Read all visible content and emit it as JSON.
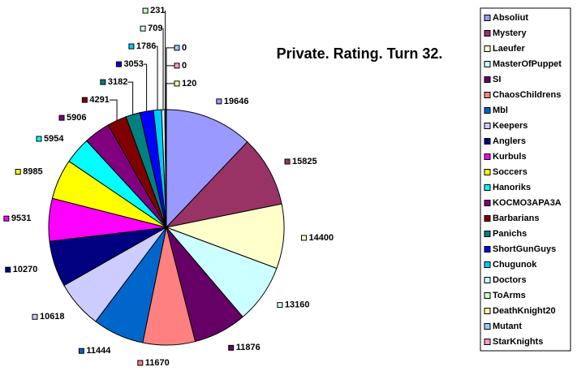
{
  "chart_data": {
    "type": "pie",
    "title": "Private. Rating. Turn 32.",
    "series": [
      {
        "name": "Absoliut",
        "color": "#9999FF",
        "values": [
          19646
        ]
      },
      {
        "name": "Mystery",
        "color": "#993366",
        "values": [
          15825
        ]
      },
      {
        "name": "Laeufer",
        "color": "#FFFFCC",
        "values": [
          14400
        ]
      },
      {
        "name": "MasterOfPuppet",
        "color": "#CCFFFF",
        "values": [
          13160
        ]
      },
      {
        "name": "SI",
        "color": "#660066",
        "values": [
          11876
        ]
      },
      {
        "name": "ChaosChildrens",
        "color": "#FF8080",
        "values": [
          11670
        ]
      },
      {
        "name": "Mbl",
        "color": "#0066CC",
        "values": [
          11444
        ]
      },
      {
        "name": "Keepers",
        "color": "#CCCCFF",
        "values": [
          10618
        ]
      },
      {
        "name": "Anglers",
        "color": "#000080",
        "values": [
          10270
        ]
      },
      {
        "name": "Kurbuls",
        "color": "#FF00FF",
        "values": [
          9531
        ]
      },
      {
        "name": "Soccers",
        "color": "#FFFF00",
        "values": [
          8985
        ]
      },
      {
        "name": "Hanoriks",
        "color": "#00FFFF",
        "values": [
          5954
        ]
      },
      {
        "name": "KOCMO3APA3A",
        "color": "#800080",
        "values": [
          5906
        ]
      },
      {
        "name": "Barbarians",
        "color": "#800000",
        "values": [
          4291
        ]
      },
      {
        "name": "Panichs",
        "color": "#008080",
        "values": [
          3182
        ]
      },
      {
        "name": "ShortGunGuys",
        "color": "#0000FF",
        "values": [
          3053
        ]
      },
      {
        "name": "Chugunok",
        "color": "#00CCFF",
        "values": [
          1786
        ]
      },
      {
        "name": "Doctors",
        "color": "#CCFFFF",
        "values": [
          709
        ]
      },
      {
        "name": "ToArms",
        "color": "#CCFFCC",
        "values": [
          231
        ]
      },
      {
        "name": "DeathKnight20",
        "color": "#FFFF99",
        "values": [
          120
        ]
      },
      {
        "name": "Mutant",
        "color": "#99CCFF",
        "values": [
          0
        ]
      },
      {
        "name": "StarKnights",
        "color": "#FF99CC",
        "values": [
          0
        ]
      }
    ]
  }
}
